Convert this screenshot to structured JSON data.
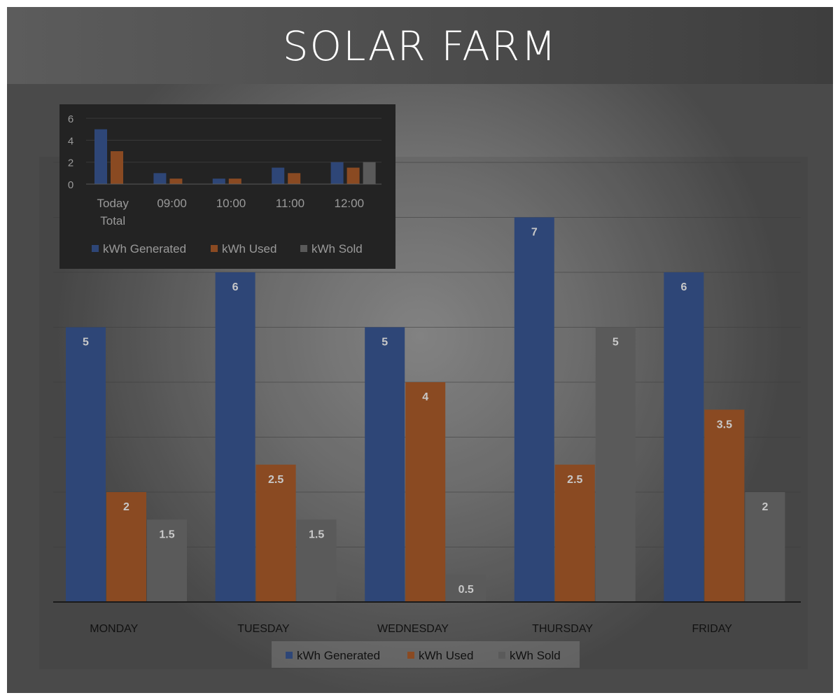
{
  "page": {
    "title": "SOLAR FARM"
  },
  "colors": {
    "generated": "#2e4677",
    "used": "#8a4a22",
    "sold": "#5a5a5a",
    "label_text": "#c8c8c8"
  },
  "chart_data": [
    {
      "type": "bar",
      "categories": [
        "MONDAY",
        "TUESDAY",
        "WEDNESDAY",
        "THURSDAY",
        "FRIDAY"
      ],
      "series": [
        {
          "name": "kWh Generated",
          "values": [
            5,
            6,
            5,
            7,
            6
          ]
        },
        {
          "name": "kWh  Used",
          "values": [
            2,
            2.5,
            4,
            2.5,
            3.5
          ]
        },
        {
          "name": "kWh Sold",
          "values": [
            1.5,
            1.5,
            0.5,
            5,
            2
          ]
        }
      ],
      "data_labels": true,
      "ylim": [
        0,
        8
      ],
      "grid": true,
      "legend": "bottom"
    },
    {
      "type": "bar",
      "categories": [
        "Today\nTotal",
        "09:00",
        "10:00",
        "11:00",
        "12:00"
      ],
      "series": [
        {
          "name": "kWh Generated",
          "values": [
            5,
            1,
            0.5,
            1.5,
            2
          ]
        },
        {
          "name": "kWh  Used",
          "values": [
            3,
            0.5,
            0.5,
            1,
            1.5
          ]
        },
        {
          "name": "kWh Sold",
          "values": [
            0,
            0,
            0,
            0,
            2
          ]
        }
      ],
      "y_ticks": [
        0,
        2,
        4,
        6
      ],
      "ylim": [
        0,
        6
      ],
      "legend": "bottom"
    }
  ]
}
